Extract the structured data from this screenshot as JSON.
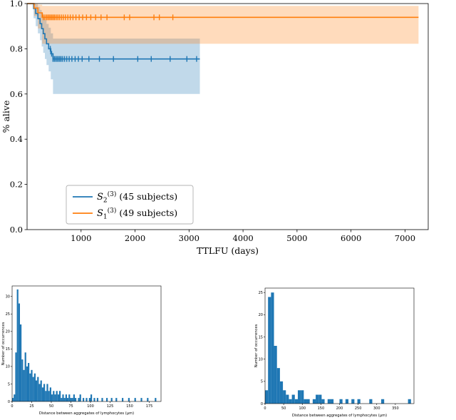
{
  "figure": {
    "background": "#ffffff",
    "accent_blue": "#1f77b4",
    "accent_orange": "#ff7f0e"
  },
  "chart_data": [
    {
      "type": "line",
      "subtype": "kaplan_meier_survival",
      "title": "",
      "xlabel": "TTLFU (days)",
      "ylabel": "% alive",
      "xlim": [
        0,
        7430
      ],
      "ylim": [
        0.0,
        1.0
      ],
      "xticks": [
        1000,
        2000,
        3000,
        4000,
        5000,
        6000,
        7000
      ],
      "yticks": [
        0.0,
        0.2,
        0.4,
        0.6,
        0.8,
        1.0
      ],
      "grid": false,
      "legend_location": "lower left",
      "series": [
        {
          "label_text": "S2(3) (45 subjects)",
          "label_base": "S",
          "label_sub": "2",
          "label_sup": "(3)",
          "label_rest": " (45 subjects)",
          "subjects": 45,
          "color": "#1f77b4",
          "band_opacity": 0.28,
          "steps": [
            [
              0,
              1.0
            ],
            [
              120,
              0.978
            ],
            [
              160,
              0.956
            ],
            [
              200,
              0.933
            ],
            [
              240,
              0.911
            ],
            [
              270,
              0.889
            ],
            [
              300,
              0.867
            ],
            [
              330,
              0.844
            ],
            [
              360,
              0.822
            ],
            [
              400,
              0.8
            ],
            [
              440,
              0.778
            ],
            [
              480,
              0.755
            ]
          ],
          "end_x": 3200,
          "band_upper": [
            [
              0,
              1.0
            ],
            [
              120,
              0.999
            ],
            [
              160,
              0.995
            ],
            [
              200,
              0.985
            ],
            [
              240,
              0.972
            ],
            [
              270,
              0.958
            ],
            [
              300,
              0.943
            ],
            [
              330,
              0.927
            ],
            [
              360,
              0.91
            ],
            [
              400,
              0.893
            ],
            [
              440,
              0.868
            ],
            [
              480,
              0.845
            ]
          ],
          "band_lower": [
            [
              0,
              1.0
            ],
            [
              120,
              0.935
            ],
            [
              160,
              0.9
            ],
            [
              200,
              0.868
            ],
            [
              240,
              0.838
            ],
            [
              270,
              0.81
            ],
            [
              300,
              0.782
            ],
            [
              330,
              0.755
            ],
            [
              360,
              0.728
            ],
            [
              400,
              0.7
            ],
            [
              440,
              0.665
            ],
            [
              480,
              0.6
            ]
          ],
          "censor_marks": [
            430,
            455,
            480,
            505,
            530,
            555,
            580,
            605,
            630,
            660,
            695,
            735,
            780,
            830,
            890,
            950,
            1020,
            1145,
            1340,
            1600,
            2050,
            2300,
            2650,
            2960,
            3140
          ]
        },
        {
          "label_text": "S1(3) (49 subjects)",
          "label_base": "S",
          "label_sub": "1",
          "label_sup": "(3)",
          "label_rest": " (49 subjects)",
          "subjects": 49,
          "color": "#ff7f0e",
          "band_opacity": 0.28,
          "steps": [
            [
              0,
              1.0
            ],
            [
              130,
              0.98
            ],
            [
              200,
              0.959
            ],
            [
              280,
              0.939
            ]
          ],
          "end_x": 7250,
          "band_upper": [
            [
              0,
              1.0
            ],
            [
              130,
              0.999
            ],
            [
              200,
              0.995
            ],
            [
              280,
              0.99
            ]
          ],
          "band_lower": [
            [
              0,
              1.0
            ],
            [
              130,
              0.945
            ],
            [
              200,
              0.89
            ],
            [
              280,
              0.822
            ]
          ],
          "censor_marks": [
            300,
            330,
            360,
            385,
            410,
            435,
            460,
            485,
            510,
            540,
            570,
            600,
            635,
            670,
            710,
            755,
            800,
            850,
            905,
            965,
            1030,
            1100,
            1180,
            1270,
            1370,
            1480,
            1800,
            1900,
            2350,
            2450,
            2700
          ]
        }
      ]
    },
    {
      "type": "bar",
      "subtype": "histogram",
      "title": "",
      "xlabel": "Distance between aggregates of lymphocytes (μm)",
      "ylabel": "Number of occurrences",
      "xlim": [
        0,
        190
      ],
      "ylim": [
        0,
        33
      ],
      "xticks": [
        0,
        25,
        50,
        75,
        100,
        125,
        150,
        175
      ],
      "yticks": [
        0,
        5,
        10,
        15,
        20,
        25,
        30
      ],
      "bar_color": "#1f77b4",
      "bin_width": 2,
      "bars": [
        [
          0,
          1
        ],
        [
          2,
          2
        ],
        [
          4,
          14
        ],
        [
          6,
          32
        ],
        [
          8,
          28
        ],
        [
          10,
          22
        ],
        [
          12,
          12
        ],
        [
          14,
          9
        ],
        [
          16,
          14
        ],
        [
          18,
          10
        ],
        [
          20,
          11
        ],
        [
          22,
          8
        ],
        [
          24,
          9
        ],
        [
          26,
          7
        ],
        [
          28,
          8
        ],
        [
          30,
          6
        ],
        [
          32,
          7
        ],
        [
          34,
          5
        ],
        [
          36,
          6
        ],
        [
          38,
          4
        ],
        [
          40,
          5
        ],
        [
          42,
          3
        ],
        [
          44,
          5
        ],
        [
          46,
          3
        ],
        [
          48,
          4
        ],
        [
          50,
          2
        ],
        [
          52,
          3
        ],
        [
          54,
          2
        ],
        [
          56,
          3
        ],
        [
          58,
          2
        ],
        [
          60,
          3
        ],
        [
          62,
          1
        ],
        [
          64,
          2
        ],
        [
          66,
          1
        ],
        [
          68,
          2
        ],
        [
          70,
          1
        ],
        [
          72,
          2
        ],
        [
          74,
          1
        ],
        [
          76,
          1
        ],
        [
          78,
          2
        ],
        [
          80,
          1
        ],
        [
          84,
          1
        ],
        [
          86,
          2
        ],
        [
          90,
          1
        ],
        [
          94,
          1
        ],
        [
          98,
          1
        ],
        [
          100,
          2
        ],
        [
          104,
          1
        ],
        [
          108,
          1
        ],
        [
          114,
          1
        ],
        [
          120,
          1
        ],
        [
          126,
          1
        ],
        [
          132,
          1
        ],
        [
          140,
          1
        ],
        [
          148,
          1
        ],
        [
          156,
          1
        ],
        [
          164,
          1
        ],
        [
          172,
          1
        ],
        [
          182,
          1
        ]
      ]
    },
    {
      "type": "bar",
      "subtype": "histogram",
      "title": "",
      "xlabel": "Distance between aggregates of lymphocytes (μm)",
      "ylabel": "Number of occurrences",
      "xlim": [
        0,
        400
      ],
      "ylim": [
        0,
        26
      ],
      "xticks": [
        0,
        50,
        100,
        150,
        200,
        250,
        300,
        350
      ],
      "yticks": [
        0,
        5,
        10,
        15,
        20,
        25
      ],
      "bar_color": "#1f77b4",
      "bin_width": 8,
      "bars": [
        [
          0,
          3
        ],
        [
          8,
          24
        ],
        [
          16,
          25
        ],
        [
          24,
          13
        ],
        [
          32,
          8
        ],
        [
          40,
          5
        ],
        [
          48,
          3
        ],
        [
          56,
          2
        ],
        [
          64,
          1
        ],
        [
          72,
          2
        ],
        [
          80,
          1
        ],
        [
          88,
          3
        ],
        [
          96,
          3
        ],
        [
          104,
          1
        ],
        [
          112,
          1
        ],
        [
          128,
          1
        ],
        [
          136,
          2
        ],
        [
          144,
          2
        ],
        [
          152,
          1
        ],
        [
          168,
          1
        ],
        [
          176,
          1
        ],
        [
          200,
          1
        ],
        [
          216,
          1
        ],
        [
          232,
          1
        ],
        [
          248,
          1
        ],
        [
          280,
          1
        ],
        [
          312,
          1
        ],
        [
          384,
          1
        ]
      ]
    }
  ]
}
